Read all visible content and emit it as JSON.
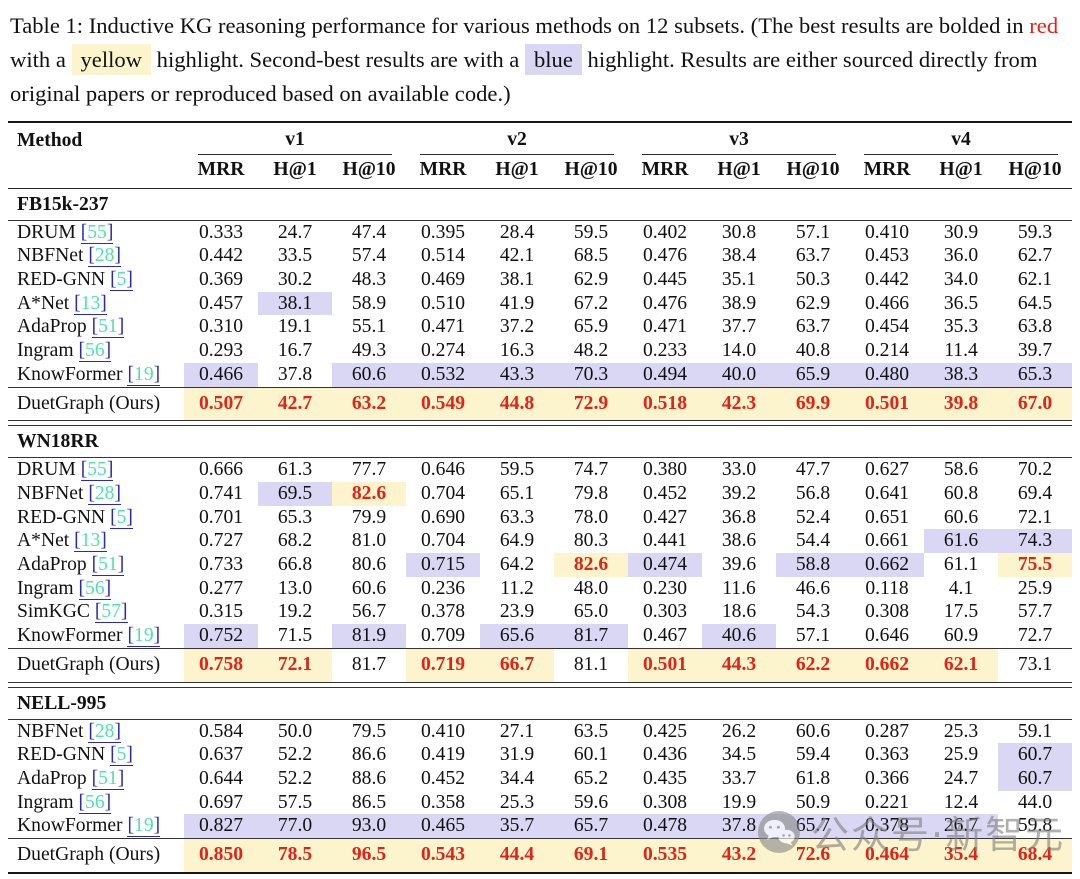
{
  "caption": {
    "part1": "Table 1: Inductive KG reasoning performance for various methods on 12 subsets. (The best results are bolded in ",
    "red_word": "red",
    "part2": " with a ",
    "yellow_word": "yellow",
    "part3": " highlight. Second-best results are with a ",
    "blue_word": "blue",
    "part4": " highlight. Results are either sourced directly from original papers or reproduced based on available code.)"
  },
  "colors": {
    "best_text": "#e52213",
    "best_bg": "#fcf4cd",
    "second_bg": "#d9d7f3",
    "cite_number": "#4fe3ad",
    "cite_bracket": "#2a2ab0"
  },
  "header": {
    "method": "Method",
    "groups": [
      "v1",
      "v2",
      "v3",
      "v4"
    ],
    "metrics": [
      "MRR",
      "H@1",
      "H@10"
    ]
  },
  "sections": [
    {
      "name": "FB15k-237",
      "rows": [
        {
          "method": "DRUM",
          "cite": "55",
          "values": [
            "0.333",
            "24.7",
            "47.4",
            "0.395",
            "28.4",
            "59.5",
            "0.402",
            "30.8",
            "57.1",
            "0.410",
            "30.9",
            "59.3"
          ],
          "hl": []
        },
        {
          "method": "NBFNet",
          "cite": "28",
          "values": [
            "0.442",
            "33.5",
            "57.4",
            "0.514",
            "42.1",
            "68.5",
            "0.476",
            "38.4",
            "63.7",
            "0.453",
            "36.0",
            "62.7"
          ],
          "hl": []
        },
        {
          "method": "RED-GNN",
          "cite": "5",
          "values": [
            "0.369",
            "30.2",
            "48.3",
            "0.469",
            "38.1",
            "62.9",
            "0.445",
            "35.1",
            "50.3",
            "0.442",
            "34.0",
            "62.1"
          ],
          "hl": []
        },
        {
          "method": "A*Net",
          "cite": "13",
          "values": [
            "0.457",
            "38.1",
            "58.9",
            "0.510",
            "41.9",
            "67.2",
            "0.476",
            "38.9",
            "62.9",
            "0.466",
            "36.5",
            "64.5"
          ],
          "hl": [
            "",
            "b",
            "",
            "",
            "",
            "",
            "",
            "",
            "",
            "",
            "",
            ""
          ]
        },
        {
          "method": "AdaProp",
          "cite": "51",
          "values": [
            "0.310",
            "19.1",
            "55.1",
            "0.471",
            "37.2",
            "65.9",
            "0.471",
            "37.7",
            "63.7",
            "0.454",
            "35.3",
            "63.8"
          ],
          "hl": []
        },
        {
          "method": "Ingram",
          "cite": "56",
          "values": [
            "0.293",
            "16.7",
            "49.3",
            "0.274",
            "16.3",
            "48.2",
            "0.233",
            "14.0",
            "40.8",
            "0.214",
            "11.4",
            "39.7"
          ],
          "hl": []
        },
        {
          "method": "KnowFormer",
          "cite": "19",
          "values": [
            "0.466",
            "37.8",
            "60.6",
            "0.532",
            "43.3",
            "70.3",
            "0.494",
            "40.0",
            "65.9",
            "0.480",
            "38.3",
            "65.3"
          ],
          "hl": [
            "b",
            "",
            "b",
            "b",
            "b",
            "b",
            "b",
            "b",
            "b",
            "b",
            "b",
            "b"
          ]
        }
      ],
      "ours": {
        "method": "DuetGraph (Ours)",
        "values": [
          "0.507",
          "42.7",
          "63.2",
          "0.549",
          "44.8",
          "72.9",
          "0.518",
          "42.3",
          "69.9",
          "0.501",
          "39.8",
          "67.0"
        ],
        "hl": [
          "y",
          "y",
          "y",
          "y",
          "y",
          "y",
          "y",
          "y",
          "y",
          "y",
          "y",
          "y"
        ]
      }
    },
    {
      "name": "WN18RR",
      "rows": [
        {
          "method": "DRUM",
          "cite": "55",
          "values": [
            "0.666",
            "61.3",
            "77.7",
            "0.646",
            "59.5",
            "74.7",
            "0.380",
            "33.0",
            "47.7",
            "0.627",
            "58.6",
            "70.2"
          ],
          "hl": []
        },
        {
          "method": "NBFNet",
          "cite": "28",
          "values": [
            "0.741",
            "69.5",
            "82.6",
            "0.704",
            "65.1",
            "79.8",
            "0.452",
            "39.2",
            "56.8",
            "0.641",
            "60.8",
            "69.4"
          ],
          "hl": [
            "",
            "b",
            "y",
            "",
            "",
            "",
            "",
            "",
            "",
            "",
            "",
            ""
          ]
        },
        {
          "method": "RED-GNN",
          "cite": "5",
          "values": [
            "0.701",
            "65.3",
            "79.9",
            "0.690",
            "63.3",
            "78.0",
            "0.427",
            "36.8",
            "52.4",
            "0.651",
            "60.6",
            "72.1"
          ],
          "hl": []
        },
        {
          "method": "A*Net",
          "cite": "13",
          "values": [
            "0.727",
            "68.2",
            "81.0",
            "0.704",
            "64.9",
            "80.3",
            "0.441",
            "38.6",
            "54.4",
            "0.661",
            "61.6",
            "74.3"
          ],
          "hl": [
            "",
            "",
            "",
            "",
            "",
            "",
            "",
            "",
            "",
            "",
            "b",
            "b"
          ]
        },
        {
          "method": "AdaProp",
          "cite": "51",
          "values": [
            "0.733",
            "66.8",
            "80.6",
            "0.715",
            "64.2",
            "82.6",
            "0.474",
            "39.6",
            "58.8",
            "0.662",
            "61.1",
            "75.5"
          ],
          "hl": [
            "",
            "",
            "",
            "b",
            "",
            "y",
            "b",
            "",
            "b",
            "b",
            "",
            "y"
          ]
        },
        {
          "method": "Ingram",
          "cite": "56",
          "values": [
            "0.277",
            "13.0",
            "60.6",
            "0.236",
            "11.2",
            "48.0",
            "0.230",
            "11.6",
            "46.6",
            "0.118",
            "4.1",
            "25.9"
          ],
          "hl": []
        },
        {
          "method": "SimKGC",
          "cite": "57",
          "values": [
            "0.315",
            "19.2",
            "56.7",
            "0.378",
            "23.9",
            "65.0",
            "0.303",
            "18.6",
            "54.3",
            "0.308",
            "17.5",
            "57.7"
          ],
          "hl": []
        },
        {
          "method": "KnowFormer",
          "cite": "19",
          "values": [
            "0.752",
            "71.5",
            "81.9",
            "0.709",
            "65.6",
            "81.7",
            "0.467",
            "40.6",
            "57.1",
            "0.646",
            "60.9",
            "72.7"
          ],
          "hl": [
            "b",
            "",
            "b",
            "",
            "b",
            "b",
            "",
            "b",
            "",
            "",
            "",
            ""
          ]
        }
      ],
      "ours": {
        "method": "DuetGraph (Ours)",
        "values": [
          "0.758",
          "72.1",
          "81.7",
          "0.719",
          "66.7",
          "81.1",
          "0.501",
          "44.3",
          "62.2",
          "0.662",
          "62.1",
          "73.1"
        ],
        "hl": [
          "y",
          "y",
          "",
          "y",
          "y",
          "",
          "y",
          "y",
          "y",
          "y",
          "y",
          ""
        ]
      }
    },
    {
      "name": "NELL-995",
      "rows": [
        {
          "method": "NBFNet",
          "cite": "28",
          "values": [
            "0.584",
            "50.0",
            "79.5",
            "0.410",
            "27.1",
            "63.5",
            "0.425",
            "26.2",
            "60.6",
            "0.287",
            "25.3",
            "59.1"
          ],
          "hl": []
        },
        {
          "method": "RED-GNN",
          "cite": "5",
          "values": [
            "0.637",
            "52.2",
            "86.6",
            "0.419",
            "31.9",
            "60.1",
            "0.436",
            "34.5",
            "59.4",
            "0.363",
            "25.9",
            "60.7"
          ],
          "hl": [
            "",
            "",
            "",
            "",
            "",
            "",
            "",
            "",
            "",
            "",
            "",
            "b"
          ]
        },
        {
          "method": "AdaProp",
          "cite": "51",
          "values": [
            "0.644",
            "52.2",
            "88.6",
            "0.452",
            "34.4",
            "65.2",
            "0.435",
            "33.7",
            "61.8",
            "0.366",
            "24.7",
            "60.7"
          ],
          "hl": [
            "",
            "",
            "",
            "",
            "",
            "",
            "",
            "",
            "",
            "",
            "",
            "b"
          ]
        },
        {
          "method": "Ingram",
          "cite": "56",
          "values": [
            "0.697",
            "57.5",
            "86.5",
            "0.358",
            "25.3",
            "59.6",
            "0.308",
            "19.9",
            "50.9",
            "0.221",
            "12.4",
            "44.0"
          ],
          "hl": []
        },
        {
          "method": "KnowFormer",
          "cite": "19",
          "values": [
            "0.827",
            "77.0",
            "93.0",
            "0.465",
            "35.7",
            "65.7",
            "0.478",
            "37.8",
            "65.7",
            "0.378",
            "26.7",
            "59.8"
          ],
          "hl": [
            "b",
            "b",
            "b",
            "b",
            "b",
            "b",
            "b",
            "b",
            "b",
            "b",
            "b",
            ""
          ]
        }
      ],
      "ours": {
        "method": "DuetGraph (Ours)",
        "values": [
          "0.850",
          "78.5",
          "96.5",
          "0.543",
          "44.4",
          "69.1",
          "0.535",
          "43.2",
          "72.6",
          "0.464",
          "35.4",
          "68.4"
        ],
        "hl": [
          "y",
          "y",
          "y",
          "y",
          "y",
          "y",
          "y",
          "y",
          "y",
          "y",
          "y",
          "y"
        ]
      }
    }
  ],
  "watermark": {
    "text": "公众号·新智元",
    "icon": "wechat-icon"
  }
}
